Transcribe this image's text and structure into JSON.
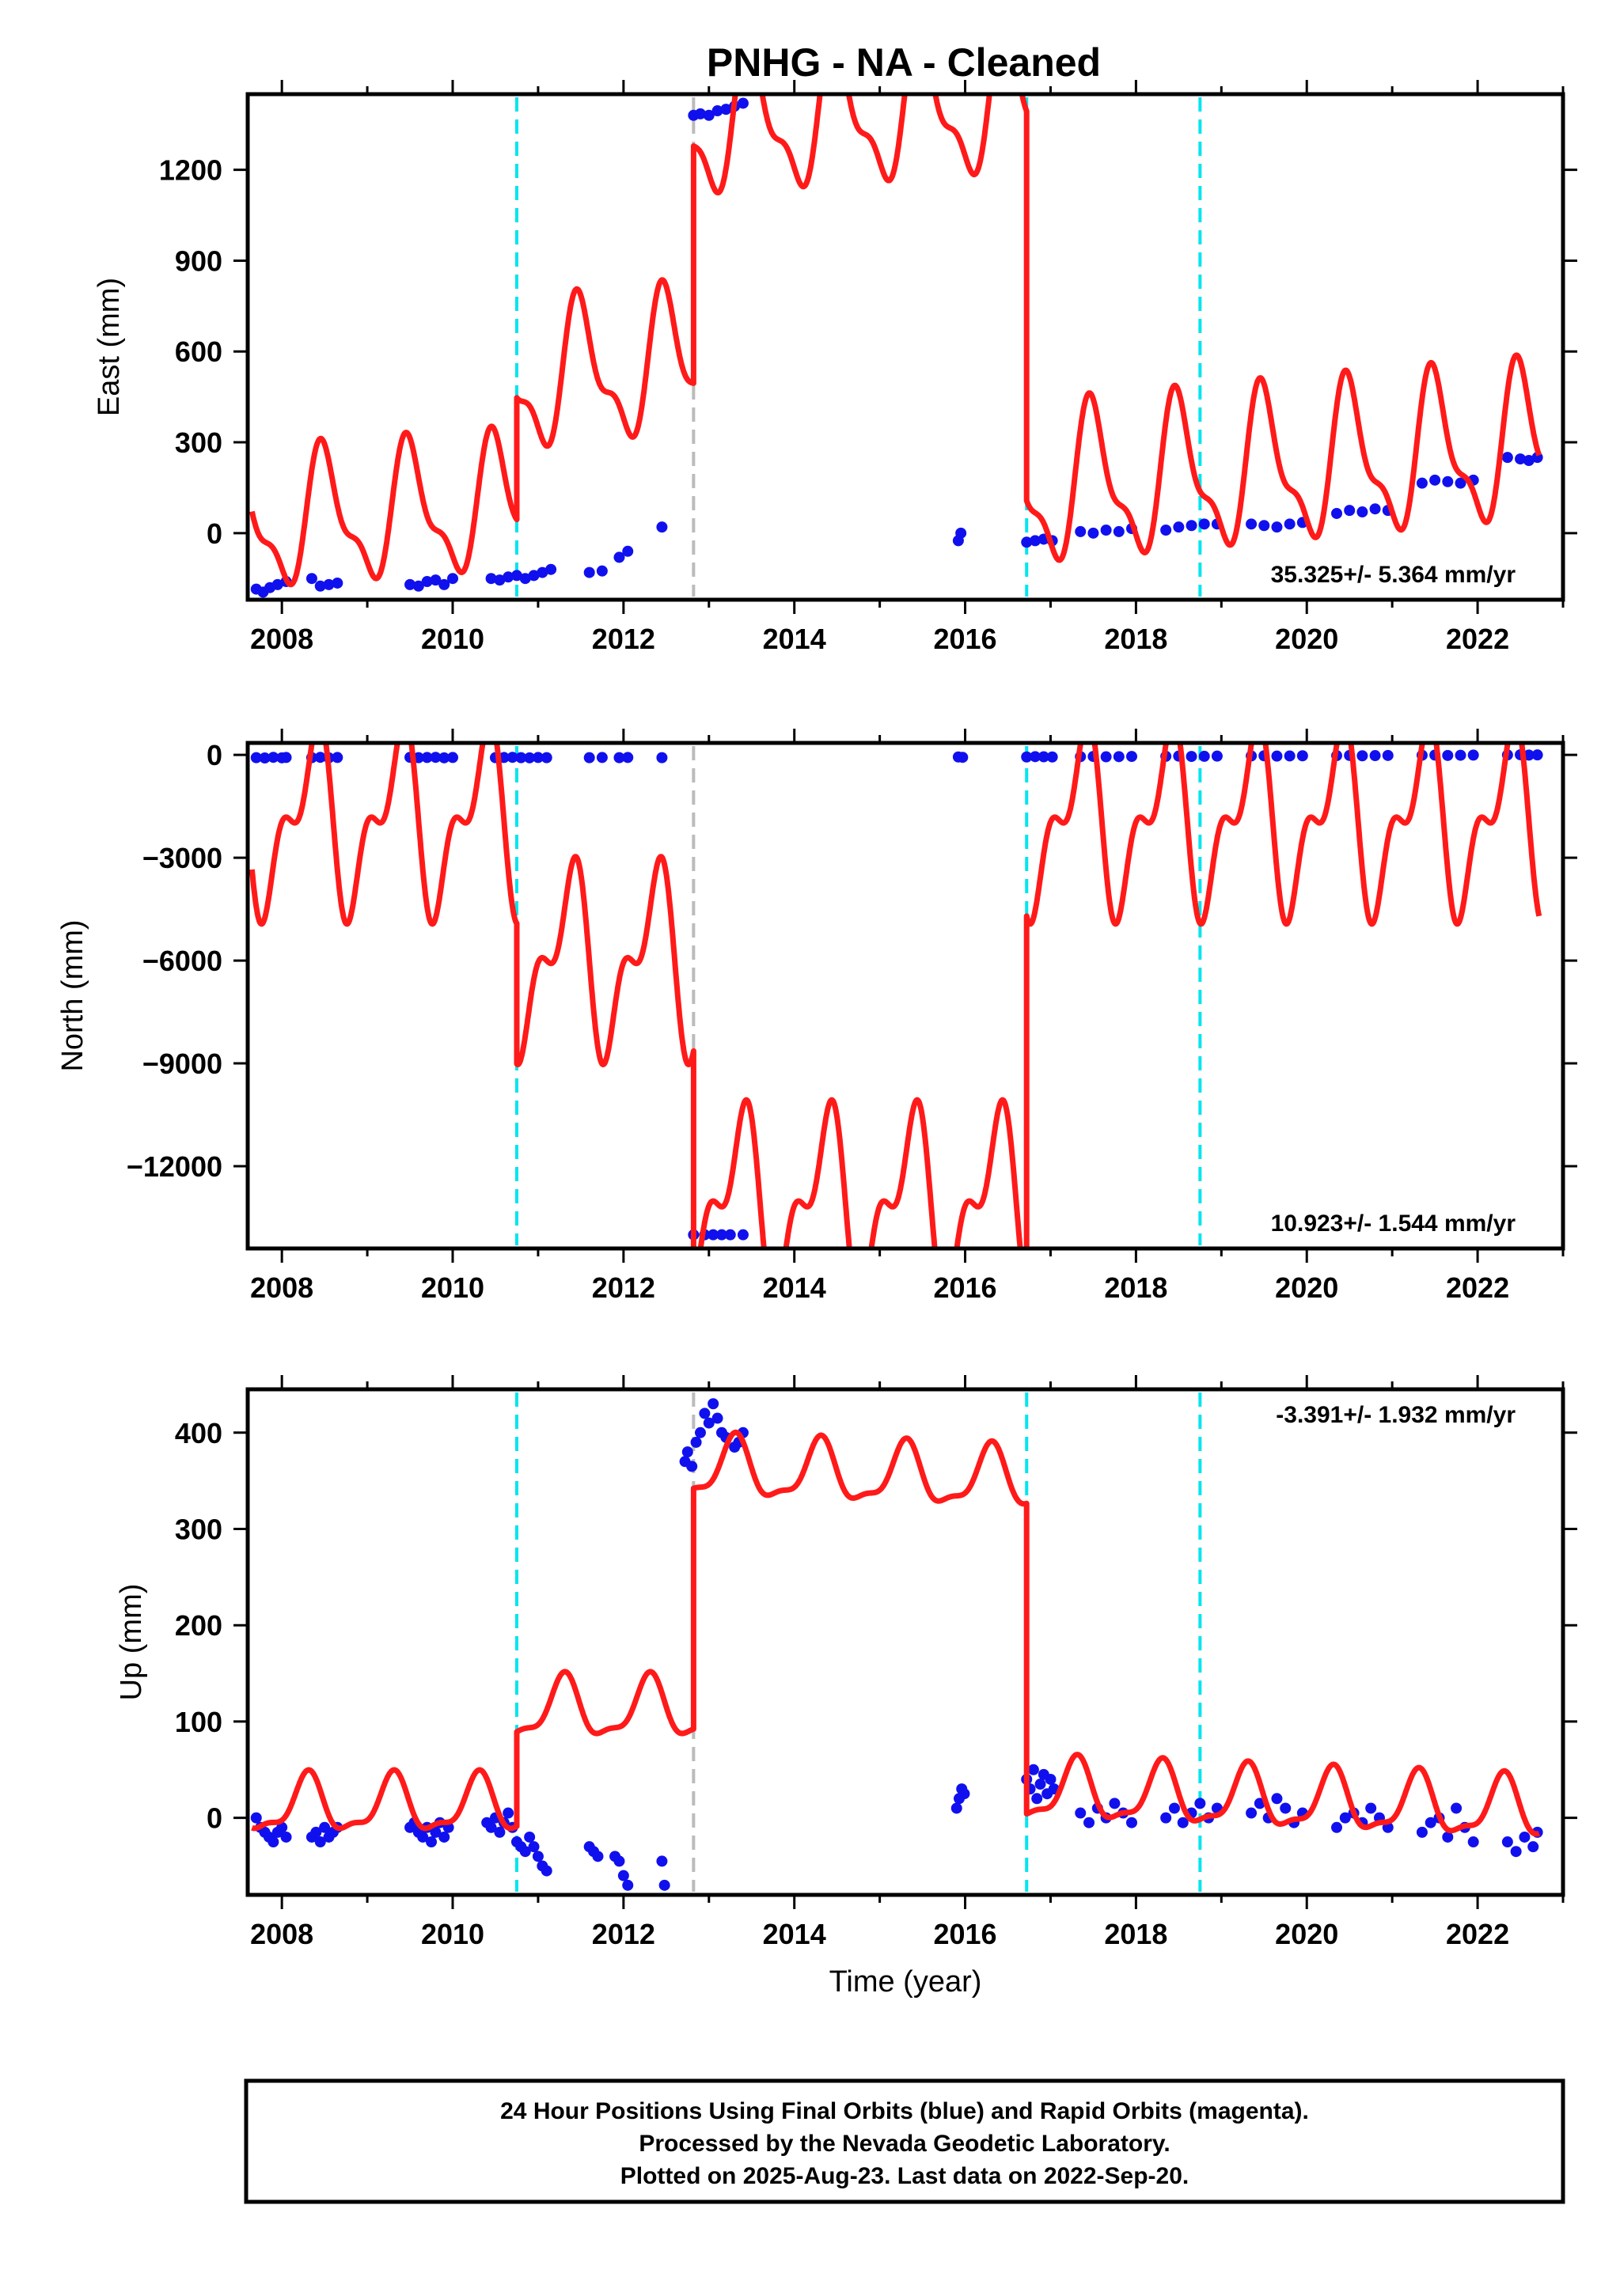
{
  "title": "PNHG  - NA - Cleaned",
  "colors": {
    "model": "#ff1a1a",
    "data": "#1010ee",
    "offset_equipment": "#00e5ee",
    "offset_other": "#bbbbbb",
    "frame": "#000000"
  },
  "chart_data": [
    {
      "type": "scatter",
      "panel": "east",
      "ylabel": "East (mm)",
      "xlabel": "",
      "xlim": [
        2007.6,
        2023.0
      ],
      "ylim": [
        -220,
        1450
      ],
      "yticks": [
        0,
        300,
        600,
        900,
        1200
      ],
      "ytick_labels": [
        "0",
        "300",
        "600",
        "900",
        "1200"
      ],
      "xticks": [
        2008,
        2010,
        2012,
        2014,
        2016,
        2018,
        2020,
        2022
      ],
      "xtick_labels": [
        "2008",
        "2010",
        "2012",
        "2014",
        "2016",
        "2018",
        "2020",
        "2022"
      ],
      "rate_label": "35.325+/- 5.364 mm/yr",
      "rate_position": "bottom-right",
      "offset_lines": [
        {
          "year": 2010.75,
          "kind": "equipment"
        },
        {
          "year": 2012.82,
          "kind": "other"
        },
        {
          "year": 2016.72,
          "kind": "equipment"
        },
        {
          "year": 2018.75,
          "kind": "equipment"
        }
      ],
      "model": {
        "segments": [
          {
            "start": 2007.65,
            "end": 2010.75,
            "base": 30,
            "slope": 20,
            "annual": 200,
            "semi": 80
          },
          {
            "start": 2010.75,
            "end": 2012.82,
            "base": 500,
            "slope": 30,
            "annual": 210,
            "semi": 90
          },
          {
            "start": 2012.82,
            "end": 2016.72,
            "base": 1350,
            "slope": 20,
            "annual": 220,
            "semi": 90
          },
          {
            "start": 2016.72,
            "end": 2022.72,
            "base": 140,
            "slope": 25,
            "annual": 230,
            "semi": 90
          }
        ],
        "phase_annual": 0.25,
        "phase_semi": 0.3
      },
      "data_series": [
        {
          "x": [
            2007.7,
            2007.78,
            2007.86,
            2007.95,
            2008.05
          ],
          "y": [
            -185,
            -195,
            -180,
            -170,
            -160
          ]
        },
        {
          "x": [
            2008.35,
            2008.45,
            2008.55,
            2008.65
          ],
          "y": [
            -150,
            -175,
            -170,
            -165
          ]
        },
        {
          "x": [
            2009.5,
            2009.6,
            2009.7,
            2009.8,
            2009.9,
            2010.0
          ],
          "y": [
            -170,
            -175,
            -160,
            -155,
            -170,
            -150
          ]
        },
        {
          "x": [
            2010.45,
            2010.55,
            2010.65,
            2010.75,
            2010.85,
            2010.95,
            2011.05,
            2011.15
          ],
          "y": [
            -150,
            -155,
            -145,
            -140,
            -150,
            -140,
            -130,
            -120
          ]
        },
        {
          "x": [
            2011.6,
            2011.75
          ],
          "y": [
            -130,
            -125
          ]
        },
        {
          "x": [
            2011.95,
            2012.05
          ],
          "y": [
            -80,
            -60
          ]
        },
        {
          "x": [
            2012.45
          ],
          "y": [
            20
          ]
        },
        {
          "x": [
            2012.82,
            2012.9,
            2013.0,
            2013.1,
            2013.2,
            2013.3,
            2013.4
          ],
          "y": [
            1380,
            1385,
            1380,
            1395,
            1400,
            1410,
            1420
          ]
        },
        {
          "x": [
            2015.92,
            2015.95
          ],
          "y": [
            -25,
            0
          ]
        },
        {
          "x": [
            2016.72,
            2016.82,
            2016.92,
            2017.02
          ],
          "y": [
            -30,
            -25,
            -20,
            -25
          ]
        },
        {
          "x": [
            2017.35,
            2017.5,
            2017.65,
            2017.8,
            2017.95
          ],
          "y": [
            5,
            0,
            10,
            5,
            15
          ]
        },
        {
          "x": [
            2018.35,
            2018.5,
            2018.65,
            2018.8,
            2018.95
          ],
          "y": [
            10,
            20,
            25,
            30,
            30
          ]
        },
        {
          "x": [
            2019.35,
            2019.5,
            2019.65,
            2019.8,
            2019.95
          ],
          "y": [
            30,
            25,
            20,
            30,
            35
          ]
        },
        {
          "x": [
            2020.35,
            2020.5,
            2020.65,
            2020.8,
            2020.95
          ],
          "y": [
            65,
            75,
            70,
            80,
            75
          ]
        },
        {
          "x": [
            2021.35,
            2021.5,
            2021.65,
            2021.8,
            2021.95
          ],
          "y": [
            165,
            175,
            170,
            165,
            175
          ]
        },
        {
          "x": [
            2022.35,
            2022.5,
            2022.6,
            2022.7
          ],
          "y": [
            250,
            245,
            240,
            250
          ]
        }
      ]
    },
    {
      "type": "scatter",
      "panel": "north",
      "ylabel": "North (mm)",
      "xlabel": "",
      "xlim": [
        2007.6,
        2023.0
      ],
      "ylim": [
        -14400,
        350
      ],
      "yticks": [
        0,
        -3000,
        -6000,
        -9000,
        -12000
      ],
      "ytick_labels": [
        "0",
        "−3000",
        "−6000",
        "−9000",
        "−12000"
      ],
      "xticks": [
        2008,
        2010,
        2012,
        2014,
        2016,
        2018,
        2020,
        2022
      ],
      "xtick_labels": [
        "2008",
        "2010",
        "2012",
        "2014",
        "2016",
        "2018",
        "2020",
        "2022"
      ],
      "rate_label": "10.923+/- 1.544 mm/yr",
      "rate_position": "bottom-right",
      "offset_lines": [
        {
          "year": 2010.75,
          "kind": "equipment"
        },
        {
          "year": 2012.82,
          "kind": "other"
        },
        {
          "year": 2016.72,
          "kind": "equipment"
        },
        {
          "year": 2018.75,
          "kind": "equipment"
        }
      ],
      "model": {
        "segments": [
          {
            "start": 2007.65,
            "end": 2010.75,
            "base": -1900,
            "slope": 0,
            "annual": 2200,
            "semi": 1300
          },
          {
            "start": 2010.75,
            "end": 2012.82,
            "base": -6000,
            "slope": 0,
            "annual": 2200,
            "semi": 1300
          },
          {
            "start": 2012.82,
            "end": 2016.72,
            "base": -13100,
            "slope": 0,
            "annual": 2200,
            "semi": 1300
          },
          {
            "start": 2016.72,
            "end": 2022.72,
            "base": -1900,
            "slope": 0,
            "annual": 2200,
            "semi": 1300
          }
        ],
        "phase_annual": 0.1,
        "phase_semi": 0.35
      },
      "data_series": [
        {
          "x": [
            2007.7,
            2007.8,
            2007.9,
            2008.0,
            2008.05
          ],
          "y": [
            -80,
            -90,
            -70,
            -85,
            -75
          ]
        },
        {
          "x": [
            2008.35,
            2008.45,
            2008.55,
            2008.65
          ],
          "y": [
            -80,
            -70,
            -85,
            -75
          ]
        },
        {
          "x": [
            2009.5,
            2009.6,
            2009.7,
            2009.8,
            2009.9,
            2010.0
          ],
          "y": [
            -70,
            -80,
            -75,
            -70,
            -85,
            -75
          ]
        },
        {
          "x": [
            2010.5,
            2010.6,
            2010.7,
            2010.8,
            2010.9,
            2011.0,
            2011.1
          ],
          "y": [
            -80,
            -75,
            -70,
            -80,
            -85,
            -75,
            -80
          ]
        },
        {
          "x": [
            2011.6,
            2011.75
          ],
          "y": [
            -80,
            -75
          ]
        },
        {
          "x": [
            2011.95,
            2012.05
          ],
          "y": [
            -80,
            -75
          ]
        },
        {
          "x": [
            2012.45
          ],
          "y": [
            -80
          ]
        },
        {
          "x": [
            2012.82,
            2012.95,
            2013.05,
            2013.15,
            2013.25,
            2013.4
          ],
          "y": [
            -14000,
            -14000,
            -14000,
            -14000,
            -14000,
            -14000
          ]
        },
        {
          "x": [
            2015.92,
            2015.97
          ],
          "y": [
            -60,
            -70
          ]
        },
        {
          "x": [
            2016.72,
            2016.82,
            2016.92,
            2017.02
          ],
          "y": [
            -60,
            -50,
            -55,
            -60
          ]
        },
        {
          "x": [
            2017.35,
            2017.5,
            2017.65,
            2017.8,
            2017.95
          ],
          "y": [
            -50,
            -45,
            -55,
            -50,
            -45
          ]
        },
        {
          "x": [
            2018.35,
            2018.5,
            2018.65,
            2018.8,
            2018.95
          ],
          "y": [
            -40,
            -35,
            -45,
            -40,
            -35
          ]
        },
        {
          "x": [
            2019.35,
            2019.5,
            2019.65,
            2019.8,
            2019.95
          ],
          "y": [
            -30,
            -25,
            -35,
            -30,
            -25
          ]
        },
        {
          "x": [
            2020.35,
            2020.5,
            2020.65,
            2020.8,
            2020.95
          ],
          "y": [
            -20,
            -15,
            -25,
            -20,
            -15
          ]
        },
        {
          "x": [
            2021.35,
            2021.5,
            2021.65,
            2021.8,
            2021.95
          ],
          "y": [
            -10,
            -5,
            -15,
            -10,
            -5
          ]
        },
        {
          "x": [
            2022.35,
            2022.5,
            2022.6,
            2022.7
          ],
          "y": [
            0,
            5,
            -5,
            0
          ]
        }
      ]
    },
    {
      "type": "scatter",
      "panel": "up",
      "ylabel": "Up (mm)",
      "xlabel": "Time (year)",
      "xlim": [
        2007.6,
        2023.0
      ],
      "ylim": [
        -80,
        445
      ],
      "yticks": [
        0,
        100,
        200,
        300,
        400
      ],
      "ytick_labels": [
        "0",
        "100",
        "200",
        "300",
        "400"
      ],
      "xticks": [
        2008,
        2010,
        2012,
        2014,
        2016,
        2018,
        2020,
        2022
      ],
      "xtick_labels": [
        "2008",
        "2010",
        "2012",
        "2014",
        "2016",
        "2018",
        "2020",
        "2022"
      ],
      "rate_label": "-3.391+/- 1.932 mm/yr",
      "rate_position": "top-right",
      "offset_lines": [
        {
          "year": 2010.75,
          "kind": "equipment"
        },
        {
          "year": 2012.82,
          "kind": "other"
        },
        {
          "year": 2016.72,
          "kind": "equipment"
        },
        {
          "year": 2018.75,
          "kind": "equipment"
        }
      ],
      "model": {
        "segments": [
          {
            "start": 2007.65,
            "end": 2010.75,
            "base": 12,
            "slope": 0,
            "annual": 28,
            "semi": 10
          },
          {
            "start": 2010.75,
            "end": 2012.82,
            "base": 112,
            "slope": 0,
            "annual": 30,
            "semi": 10
          },
          {
            "start": 2012.82,
            "end": 2016.72,
            "base": 362,
            "slope": -3,
            "annual": 30,
            "semi": 10
          },
          {
            "start": 2016.72,
            "end": 2022.72,
            "base": 28,
            "slope": -3.4,
            "annual": 30,
            "semi": 10
          }
        ],
        "phase_annual": 0.05,
        "phase_semi": 0.2
      },
      "data_series": [
        {
          "x": [
            2007.7,
            2007.75,
            2007.8,
            2007.85,
            2007.9,
            2007.95,
            2008.0,
            2008.05
          ],
          "y": [
            0,
            -10,
            -15,
            -20,
            -25,
            -15,
            -10,
            -20
          ]
        },
        {
          "x": [
            2008.35,
            2008.4,
            2008.45,
            2008.5,
            2008.55,
            2008.6,
            2008.65
          ],
          "y": [
            -20,
            -15,
            -25,
            -10,
            -20,
            -15,
            -10
          ]
        },
        {
          "x": [
            2009.5,
            2009.55,
            2009.6,
            2009.65,
            2009.7,
            2009.75,
            2009.8,
            2009.85,
            2009.9,
            2009.95
          ],
          "y": [
            -10,
            -5,
            -15,
            -20,
            -10,
            -25,
            -15,
            -5,
            -20,
            -10
          ]
        },
        {
          "x": [
            2010.4,
            2010.45,
            2010.5,
            2010.55,
            2010.6,
            2010.65,
            2010.7
          ],
          "y": [
            -5,
            -10,
            0,
            -15,
            -5,
            5,
            -10
          ]
        },
        {
          "x": [
            2010.75,
            2010.8,
            2010.85,
            2010.9,
            2010.95,
            2011.0,
            2011.05,
            2011.1
          ],
          "y": [
            -25,
            -30,
            -35,
            -20,
            -30,
            -40,
            -50,
            -55
          ]
        },
        {
          "x": [
            2011.6,
            2011.65,
            2011.7
          ],
          "y": [
            -30,
            -35,
            -40
          ]
        },
        {
          "x": [
            2011.9,
            2011.95,
            2012.0,
            2012.05
          ],
          "y": [
            -40,
            -45,
            -60,
            -70
          ]
        },
        {
          "x": [
            2012.45,
            2012.48
          ],
          "y": [
            -45,
            -70
          ]
        },
        {
          "x": [
            2012.72,
            2012.75,
            2012.8,
            2012.85,
            2012.9,
            2012.95,
            2013.0,
            2013.05,
            2013.1,
            2013.15,
            2013.2,
            2013.3,
            2013.35,
            2013.4
          ],
          "y": [
            370,
            380,
            365,
            390,
            400,
            420,
            410,
            430,
            415,
            400,
            395,
            385,
            390,
            400
          ]
        },
        {
          "x": [
            2015.9,
            2015.93,
            2015.96,
            2015.99
          ],
          "y": [
            10,
            20,
            30,
            25
          ]
        },
        {
          "x": [
            2016.72,
            2016.76,
            2016.8,
            2016.84,
            2016.88,
            2016.92,
            2016.96,
            2017.0,
            2017.04
          ],
          "y": [
            40,
            30,
            50,
            20,
            35,
            45,
            25,
            40,
            30
          ]
        },
        {
          "x": [
            2017.35,
            2017.45,
            2017.55,
            2017.65,
            2017.75,
            2017.85,
            2017.95
          ],
          "y": [
            5,
            -5,
            10,
            0,
            15,
            5,
            -5
          ]
        },
        {
          "x": [
            2018.35,
            2018.45,
            2018.55,
            2018.65,
            2018.75,
            2018.85,
            2018.95
          ],
          "y": [
            0,
            10,
            -5,
            5,
            15,
            0,
            10
          ]
        },
        {
          "x": [
            2019.35,
            2019.45,
            2019.55,
            2019.65,
            2019.75,
            2019.85,
            2019.95
          ],
          "y": [
            5,
            15,
            0,
            20,
            10,
            -5,
            5
          ]
        },
        {
          "x": [
            2020.35,
            2020.45,
            2020.55,
            2020.65,
            2020.75,
            2020.85,
            2020.95
          ],
          "y": [
            -10,
            0,
            5,
            -5,
            10,
            0,
            -10
          ]
        },
        {
          "x": [
            2021.35,
            2021.45,
            2021.55,
            2021.65,
            2021.75,
            2021.85,
            2021.95
          ],
          "y": [
            -15,
            -5,
            0,
            -20,
            10,
            -10,
            -25
          ]
        },
        {
          "x": [
            2022.35,
            2022.45,
            2022.55,
            2022.65,
            2022.7
          ],
          "y": [
            -25,
            -35,
            -20,
            -30,
            -15
          ]
        }
      ]
    }
  ],
  "footer": {
    "line1": "24 Hour Positions Using Final Orbits (blue) and Rapid Orbits (magenta).",
    "line2": "Processed by the Nevada Geodetic Laboratory.",
    "line3": "Plotted on 2025-Aug-23. Last data on 2022-Sep-20."
  }
}
